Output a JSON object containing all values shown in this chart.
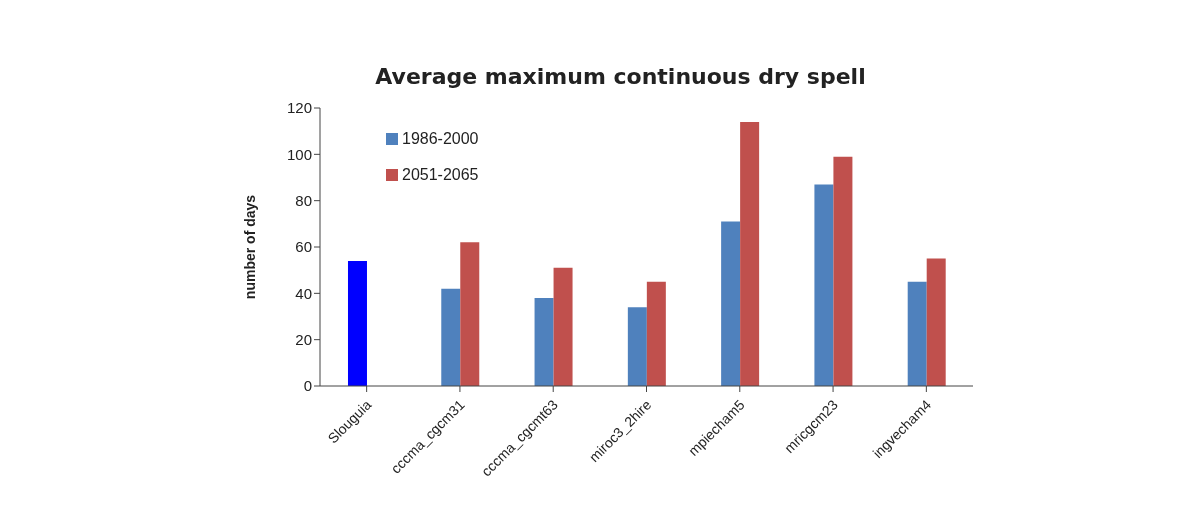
{
  "chart_data": {
    "type": "bar",
    "title": "Average maximum continuous dry spell",
    "ylabel": "number of days",
    "categories": [
      "Slouguia",
      "cccma_cgcm31",
      "cccma_cgcmt63",
      "miroc3_2hire",
      "mpiecham5",
      "mricgcm23",
      "ingvecham4"
    ],
    "series": [
      {
        "name": "1986-2000",
        "color": "#4f81bd",
        "colors": [
          "#0000ff",
          "#4f81bd",
          "#4f81bd",
          "#4f81bd",
          "#4f81bd",
          "#4f81bd",
          "#4f81bd"
        ],
        "values": [
          54,
          42,
          38,
          34,
          71,
          87,
          45
        ]
      },
      {
        "name": "2051-2065",
        "color": "#c0504d",
        "values": [
          null,
          62,
          51,
          45,
          114,
          99,
          55
        ]
      }
    ],
    "ylim": [
      0,
      120
    ],
    "yticks": [
      0,
      20,
      40,
      60,
      80,
      100,
      120
    ],
    "grid": false,
    "legend": "top left"
  }
}
